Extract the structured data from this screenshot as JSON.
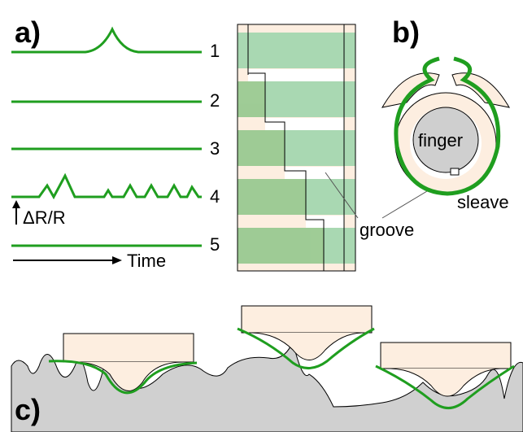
{
  "panels": {
    "a": {
      "label": "a)",
      "traces": [
        "1",
        "2",
        "3",
        "4",
        "5"
      ],
      "y_axis": "ΔR/R",
      "x_axis": "Time"
    },
    "b": {
      "label": "b)",
      "finger": "finger",
      "sleeve": "sleave",
      "groove": "groove"
    },
    "c": {
      "label": "c)"
    }
  }
}
